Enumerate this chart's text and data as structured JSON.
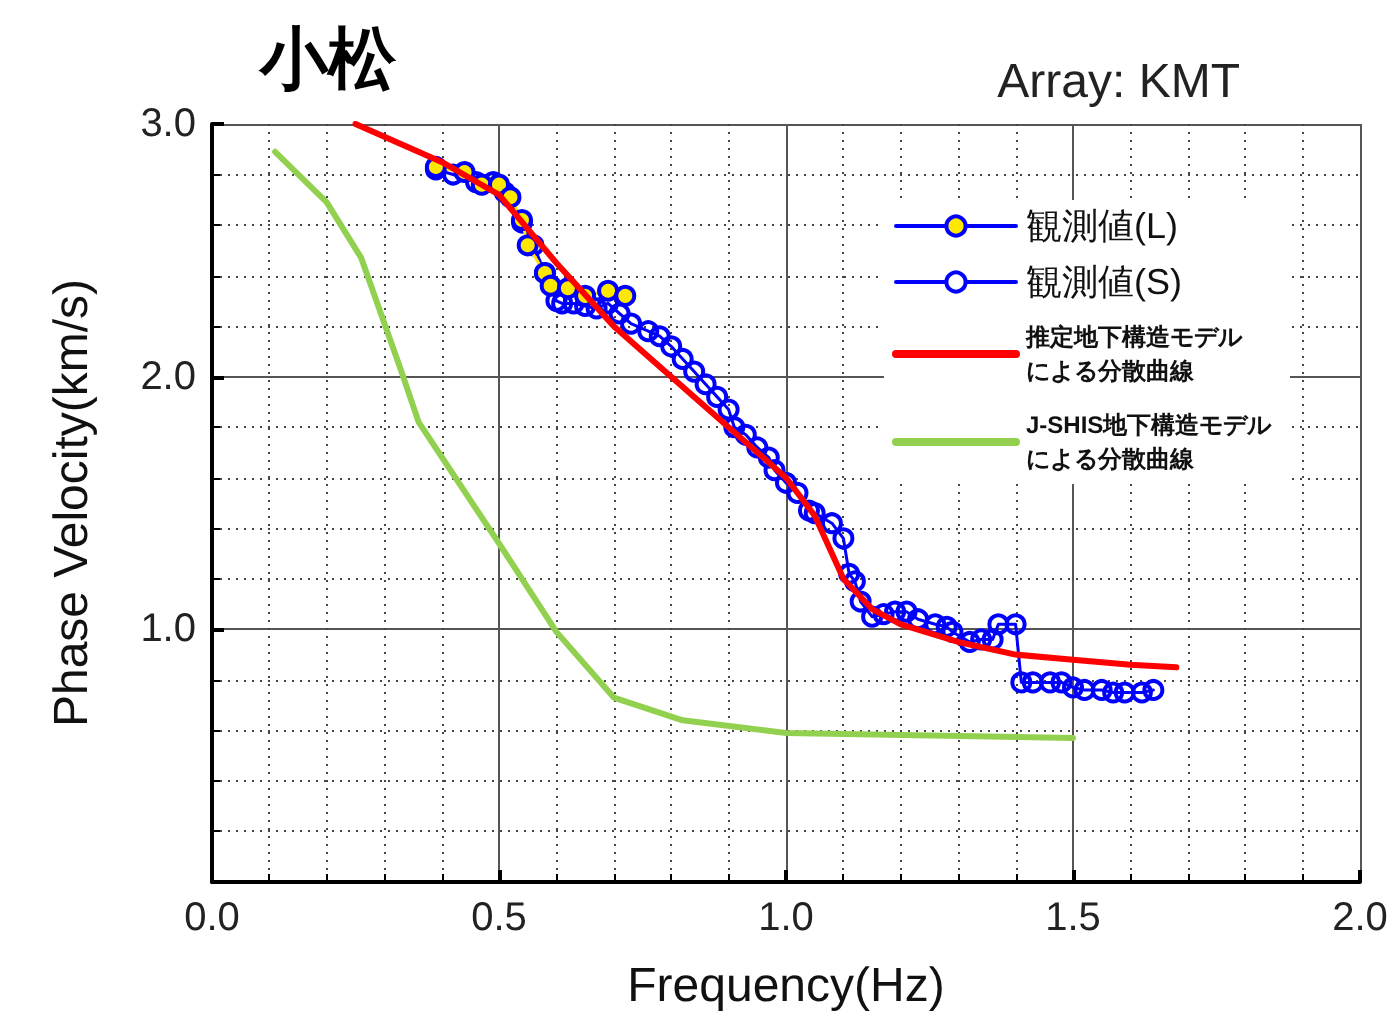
{
  "chart_data": {
    "type": "line",
    "title": "小松",
    "subtitle": "Array: KMT",
    "xlabel": "Frequency(Hz)",
    "ylabel": "Phase Velocity(km/s)",
    "xlim": [
      0,
      2.0
    ],
    "xticks": [
      {
        "value": 0,
        "label": "0.0"
      },
      {
        "value": 0.5,
        "label": "0.5"
      },
      {
        "value": 1,
        "label": "1.0"
      },
      {
        "value": 1.5,
        "label": "1.5"
      },
      {
        "value": 2,
        "label": "2.0"
      }
    ],
    "ylim": [
      0,
      3.0
    ],
    "yticks": [
      {
        "value": 0,
        "label": null
      },
      {
        "value": 1,
        "label": "1.0"
      },
      {
        "value": 2,
        "label": "2.0"
      },
      {
        "value": 3,
        "label": "3.0"
      }
    ],
    "grid": true,
    "legend": "top right",
    "series": [
      {
        "name": "観測値(L)",
        "color": "#ffe800",
        "marker": "circle",
        "x": [
          0.39,
          0.44,
          0.47,
          0.5,
          0.52,
          0.54,
          0.55,
          0.58,
          0.59,
          0.62,
          0.65,
          0.69,
          0.72
        ],
        "values": [
          2.83,
          2.81,
          2.76,
          2.76,
          2.71,
          2.62,
          2.52,
          2.41,
          2.36,
          2.35,
          2.32,
          2.34,
          2.32
        ]
      },
      {
        "name": "観測値(S)",
        "color": "#0000ff",
        "marker": "circle",
        "x": [
          0.39,
          0.42,
          0.46,
          0.49,
          0.51,
          0.54,
          0.56,
          0.58,
          0.6,
          0.61,
          0.63,
          0.65,
          0.67,
          0.69,
          0.71,
          0.73,
          0.76,
          0.78,
          0.8,
          0.82,
          0.84,
          0.86,
          0.88,
          0.9,
          0.91,
          0.93,
          0.95,
          0.97,
          0.98,
          1.0,
          1.02,
          1.04,
          1.05,
          1.08,
          1.1,
          1.11,
          1.12,
          1.13,
          1.15,
          1.17,
          1.19,
          1.21,
          1.23,
          1.26,
          1.28,
          1.29,
          1.32,
          1.34,
          1.36,
          1.37,
          1.4,
          1.41,
          1.43,
          1.46,
          1.48,
          1.5,
          1.52,
          1.55,
          1.57,
          1.59,
          1.62,
          1.64
        ],
        "values": [
          2.82,
          2.8,
          2.77,
          2.77,
          2.73,
          2.61,
          2.52,
          2.41,
          2.3,
          2.29,
          2.29,
          2.28,
          2.27,
          2.29,
          2.25,
          2.21,
          2.18,
          2.16,
          2.12,
          2.07,
          2.02,
          1.97,
          1.92,
          1.87,
          1.8,
          1.77,
          1.72,
          1.68,
          1.63,
          1.58,
          1.54,
          1.47,
          1.46,
          1.42,
          1.36,
          1.22,
          1.19,
          1.11,
          1.05,
          1.06,
          1.07,
          1.07,
          1.04,
          1.02,
          1.01,
          0.99,
          0.95,
          0.96,
          0.96,
          1.02,
          1.02,
          0.79,
          0.79,
          0.79,
          0.79,
          0.77,
          0.76,
          0.76,
          0.75,
          0.75,
          0.75,
          0.76
        ]
      },
      {
        "name": "推定地下構造モデルによる分散曲線",
        "color": "#ff0000",
        "marker": "none",
        "x": [
          0.25,
          0.4,
          0.5,
          0.6,
          0.7,
          0.8,
          0.9,
          1.0,
          1.05,
          1.1,
          1.15,
          1.2,
          1.3,
          1.4,
          1.5,
          1.6,
          1.68
        ],
        "values": [
          3.0,
          2.85,
          2.72,
          2.45,
          2.2,
          2.0,
          1.8,
          1.6,
          1.45,
          1.2,
          1.08,
          1.02,
          0.95,
          0.9,
          0.88,
          0.86,
          0.85
        ]
      },
      {
        "name": "J-SHIS地下構造モデルによる分散曲線",
        "color": "#92d050",
        "marker": "none",
        "x": [
          0.11,
          0.2,
          0.26,
          0.33,
          0.36,
          0.5,
          0.6,
          0.7,
          0.82,
          1.0,
          1.5
        ],
        "values": [
          2.89,
          2.69,
          2.47,
          2.02,
          1.82,
          1.34,
          0.99,
          0.73,
          0.64,
          0.59,
          0.57
        ]
      }
    ]
  }
}
